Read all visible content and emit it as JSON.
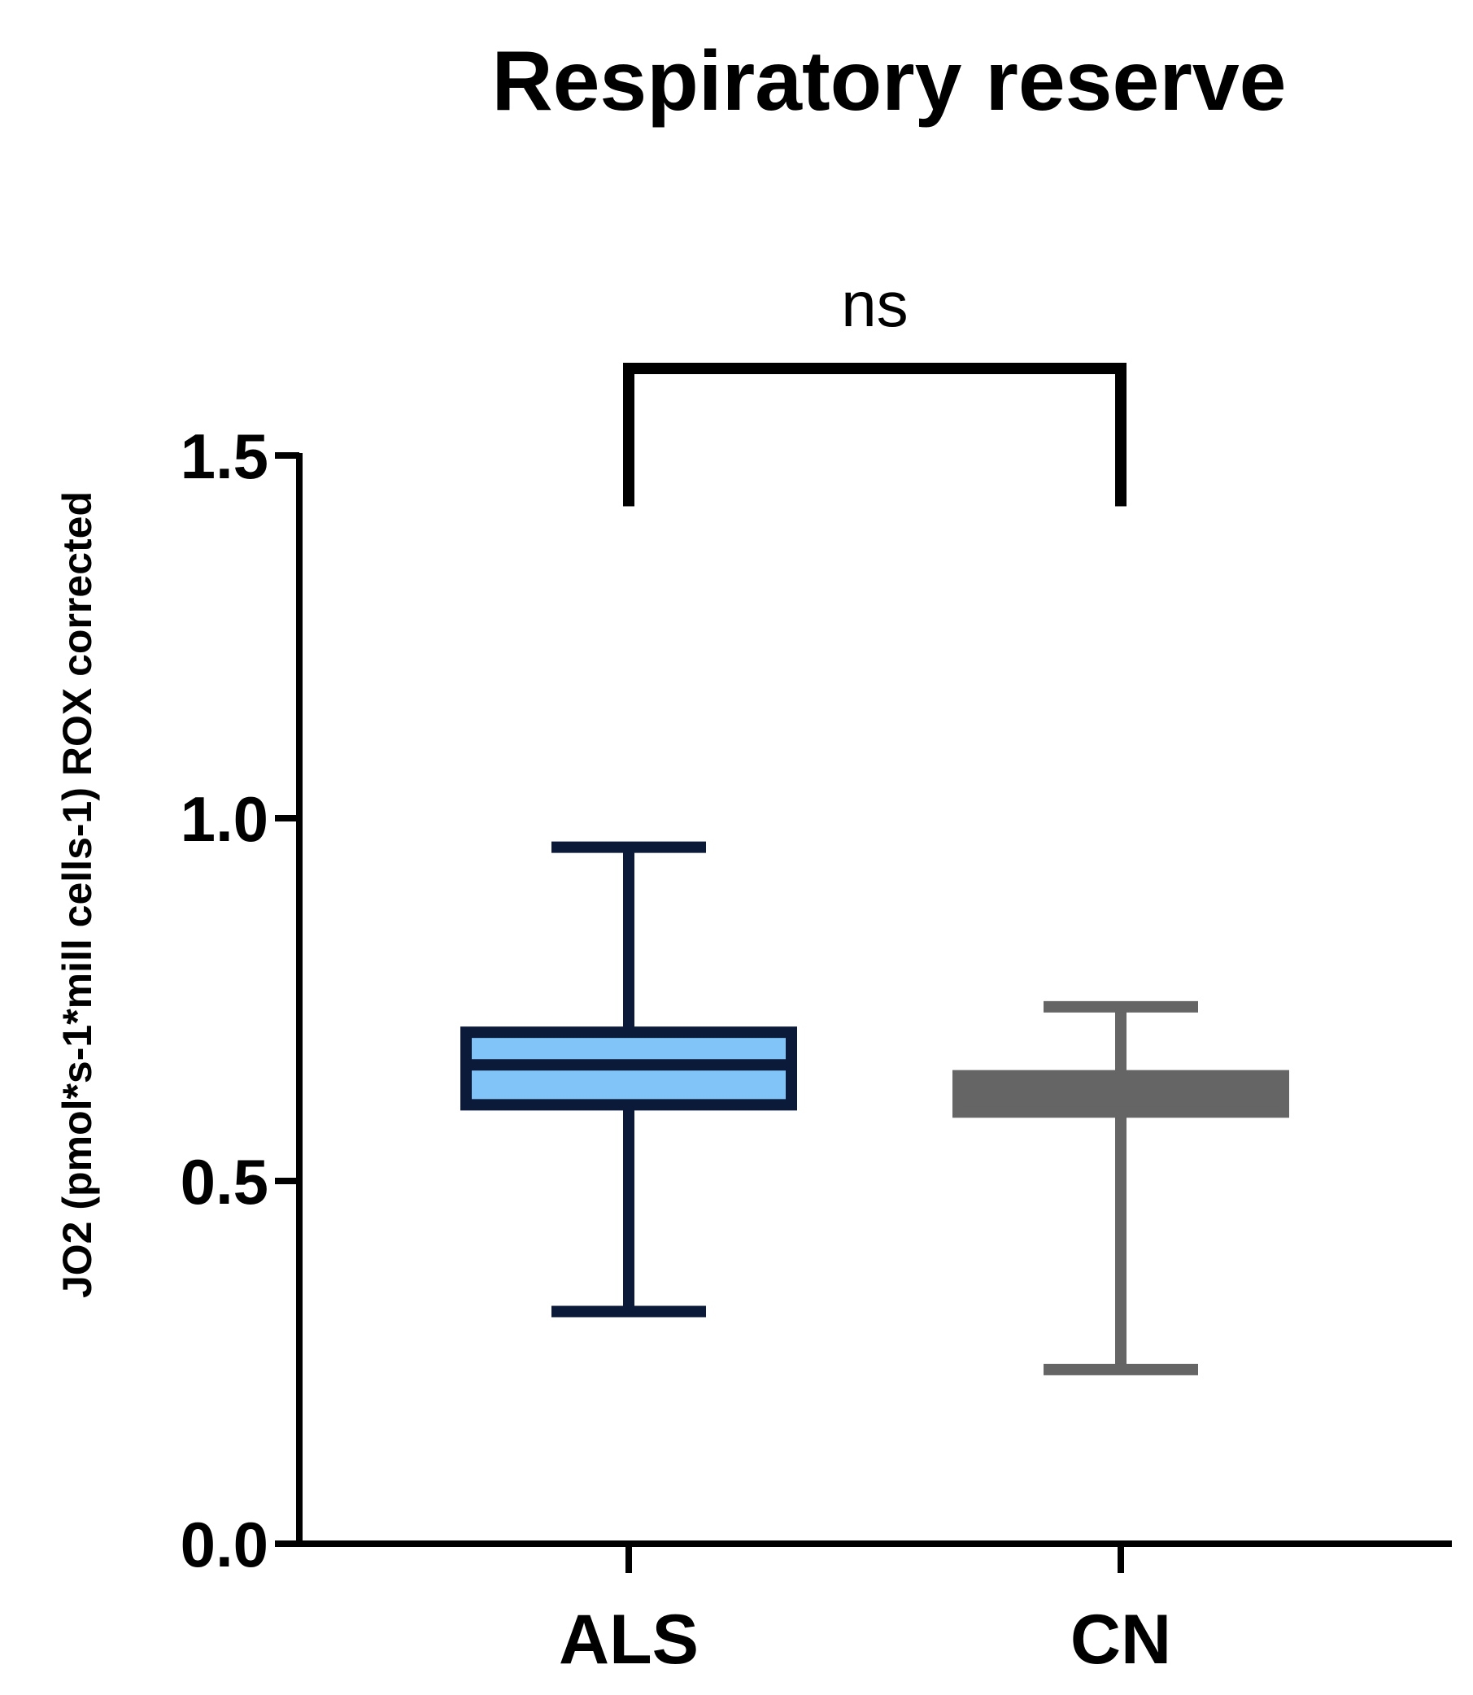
{
  "chart_data": {
    "type": "box",
    "title": "Respiratory reserve",
    "ylabel": "JO2 (pmol*s-1*mill cells-1) ROX corrected",
    "xlabel": "",
    "ylim": [
      0,
      1.5
    ],
    "yticks": [
      "0.0",
      "0.5",
      "1.0",
      "1.5"
    ],
    "ytick_values": [
      0,
      0.5,
      1.0,
      1.5
    ],
    "categories": [
      "ALS",
      "CN"
    ],
    "groups": [
      {
        "label": "ALS",
        "min": 0.32,
        "q1": 0.605,
        "median": 0.66,
        "q3": 0.705,
        "max": 0.96,
        "fill": "#80c4f8",
        "stroke": "#0c1a3a"
      },
      {
        "label": "CN",
        "min": 0.24,
        "q1": 0.595,
        "median": 0.62,
        "q3": 0.645,
        "max": 0.74,
        "fill": "#656565",
        "stroke": "#656565"
      }
    ],
    "annotations": [
      {
        "text": "ns",
        "between": [
          "ALS",
          "CN"
        ],
        "bracket_y": 1.62,
        "drop_to": 1.43
      }
    ],
    "grid": false,
    "legend": "none"
  }
}
